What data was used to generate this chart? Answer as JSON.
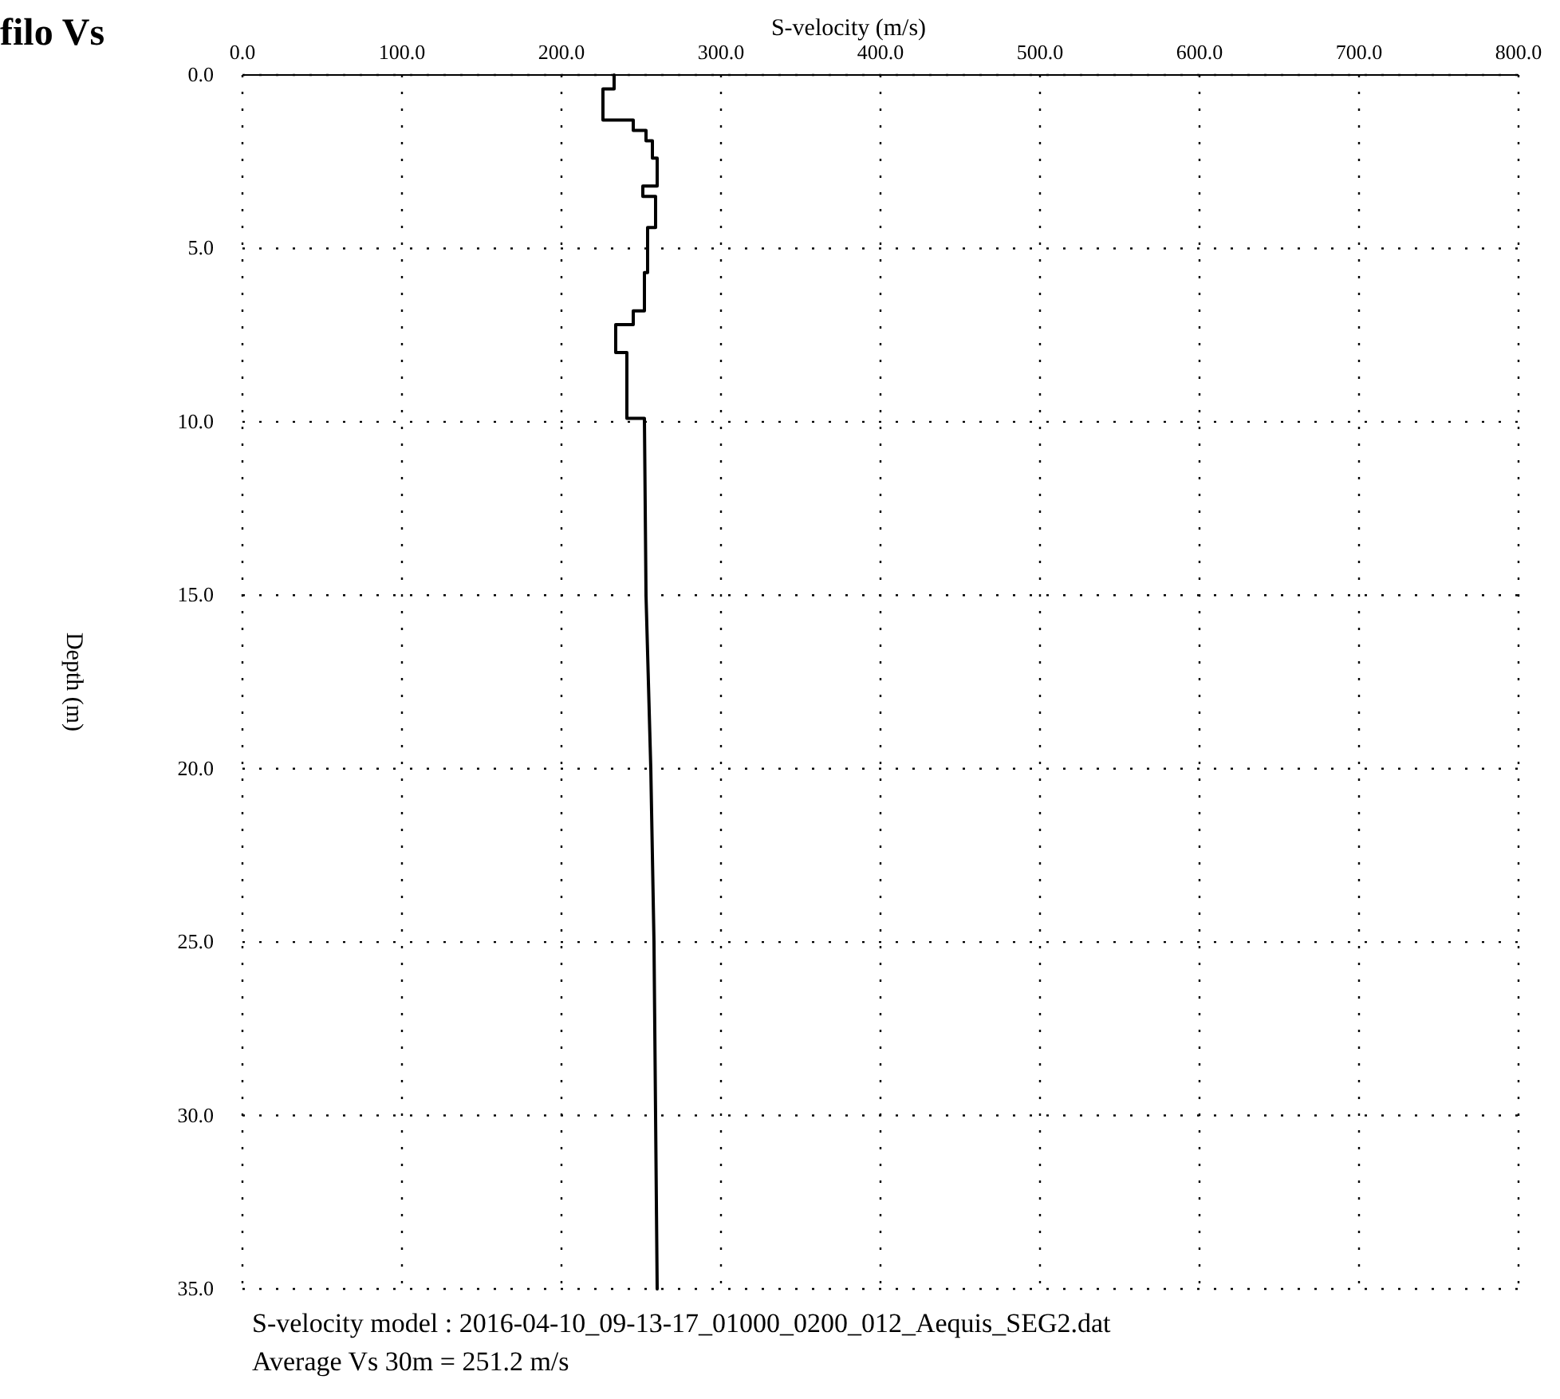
{
  "chart_data": {
    "type": "line",
    "title": "filo Vs",
    "xlabel": "S-velocity (m/s)",
    "ylabel": "Depth (m)",
    "x": [
      233,
      233,
      226,
      226,
      245,
      245,
      253,
      253,
      257,
      257,
      260,
      260,
      251,
      251,
      259,
      259,
      254,
      254,
      252,
      252,
      245,
      245,
      234,
      234,
      241,
      241,
      252,
      253,
      256,
      258,
      260
    ],
    "series": [
      {
        "color": "#000000",
        "values": [
          0,
          0.4,
          0.4,
          1.3,
          1.3,
          1.6,
          1.6,
          1.9,
          1.9,
          2.4,
          2.4,
          3.2,
          3.2,
          3.5,
          3.5,
          4.4,
          4.4,
          5.7,
          5.7,
          6.8,
          6.8,
          7.2,
          7.2,
          8,
          8,
          9.9,
          9.9,
          15,
          20,
          25,
          35
        ]
      }
    ],
    "xlim": [
      0,
      800
    ],
    "ylim": [
      35,
      0
    ],
    "xticks": [
      {
        "value": 0,
        "label": "0.0"
      },
      {
        "value": 100,
        "label": "100.0"
      },
      {
        "value": 200,
        "label": "200.0"
      },
      {
        "value": 300,
        "label": "300.0"
      },
      {
        "value": 400,
        "label": "400.0"
      },
      {
        "value": 500,
        "label": "500.0"
      },
      {
        "value": 600,
        "label": "600.0"
      },
      {
        "value": 700,
        "label": "700.0"
      },
      {
        "value": 800,
        "label": "800.0"
      }
    ],
    "yticks": [
      {
        "value": 0,
        "label": "0.0"
      },
      {
        "value": 5,
        "label": "5.0"
      },
      {
        "value": 10,
        "label": "10.0"
      },
      {
        "value": 15,
        "label": "15.0"
      },
      {
        "value": 20,
        "label": "20.0"
      },
      {
        "value": 25,
        "label": "25.0"
      },
      {
        "value": 30,
        "label": "30.0"
      },
      {
        "value": 35,
        "label": "35.0"
      }
    ],
    "grid": true,
    "line_style": "solid",
    "annotations": [
      "S-velocity model : 2016-04-10_09-13-17_01000_0200_012_Aequis_SEG2.dat",
      "Average Vs 30m = 251.2 m/s"
    ]
  }
}
